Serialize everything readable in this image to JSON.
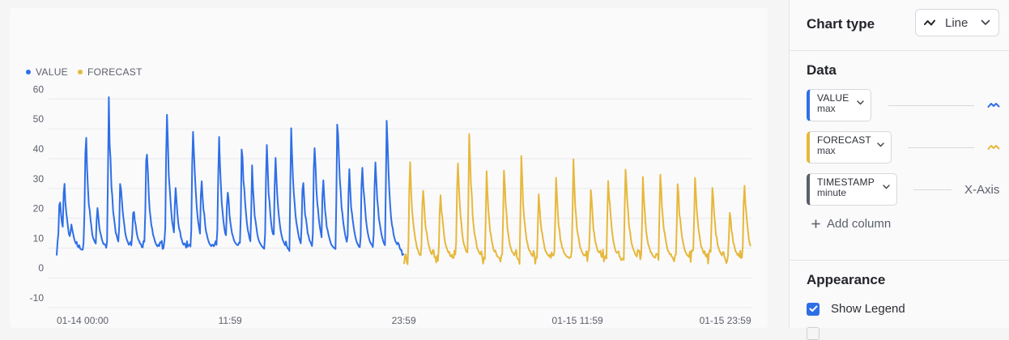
{
  "legend": [
    {
      "label": "VALUE",
      "color": "#2f6fe6"
    },
    {
      "label": "FORECAST",
      "color": "#e6b83c"
    }
  ],
  "chart_data": {
    "type": "line",
    "xlabel": "",
    "ylabel": "",
    "ylim": [
      -10,
      65
    ],
    "yticks": [
      "60",
      "50",
      "40",
      "30",
      "20",
      "10",
      "0",
      "-10"
    ],
    "xticks": [
      "01-14 00:00",
      "11:59",
      "23:59",
      "01-15 11:59",
      "01-15 23:59"
    ],
    "grid": true,
    "legend_position": "top-left",
    "x_range_hours": [
      0,
      48
    ],
    "series": [
      {
        "name": "VALUE",
        "color": "#2f6fe6",
        "peaks": [
          {
            "t": 0.2,
            "v": 29
          },
          {
            "t": 0.5,
            "v": 36
          },
          {
            "t": 1.0,
            "v": 20
          },
          {
            "t": 2.0,
            "v": 54
          },
          {
            "t": 2.8,
            "v": 26
          },
          {
            "t": 3.6,
            "v": 61
          },
          {
            "t": 4.4,
            "v": 37
          },
          {
            "t": 5.3,
            "v": 27
          },
          {
            "t": 6.2,
            "v": 50
          },
          {
            "t": 7.6,
            "v": 61
          },
          {
            "t": 8.2,
            "v": 35
          },
          {
            "t": 9.4,
            "v": 58
          },
          {
            "t": 10.0,
            "v": 38
          },
          {
            "t": 11.2,
            "v": 53
          },
          {
            "t": 11.8,
            "v": 34
          },
          {
            "t": 12.8,
            "v": 51
          },
          {
            "t": 13.5,
            "v": 38
          },
          {
            "t": 14.5,
            "v": 49
          },
          {
            "t": 15.1,
            "v": 44
          },
          {
            "t": 16.2,
            "v": 55
          },
          {
            "t": 17.0,
            "v": 37
          },
          {
            "t": 17.8,
            "v": 52
          },
          {
            "t": 18.4,
            "v": 37
          },
          {
            "t": 19.4,
            "v": 61
          },
          {
            "t": 20.2,
            "v": 40
          },
          {
            "t": 21.1,
            "v": 44
          },
          {
            "t": 22.0,
            "v": 46
          },
          {
            "t": 22.8,
            "v": 56
          }
        ],
        "x_end_hours": 24.0,
        "baseline": 9
      },
      {
        "name": "FORECAST",
        "color": "#e6b83c",
        "peaks": [
          {
            "t": 24.4,
            "v": 42
          },
          {
            "t": 25.3,
            "v": 34
          },
          {
            "t": 26.5,
            "v": 33
          },
          {
            "t": 27.7,
            "v": 43
          },
          {
            "t": 28.5,
            "v": 52
          },
          {
            "t": 29.7,
            "v": 36
          },
          {
            "t": 30.9,
            "v": 39
          },
          {
            "t": 32.1,
            "v": 42
          },
          {
            "t": 33.3,
            "v": 31
          },
          {
            "t": 34.5,
            "v": 34
          },
          {
            "t": 35.7,
            "v": 40
          },
          {
            "t": 36.9,
            "v": 32
          },
          {
            "t": 38.1,
            "v": 37
          },
          {
            "t": 39.3,
            "v": 41
          },
          {
            "t": 40.5,
            "v": 34
          },
          {
            "t": 41.7,
            "v": 39
          },
          {
            "t": 42.9,
            "v": 35
          },
          {
            "t": 44.1,
            "v": 37
          },
          {
            "t": 45.3,
            "v": 33
          },
          {
            "t": 46.5,
            "v": 24
          },
          {
            "t": 47.5,
            "v": 36
          }
        ],
        "x_end_hours": 48.0,
        "baseline": 6
      }
    ]
  },
  "sidebar": {
    "chart_type_label": "Chart type",
    "chart_type_value": "Line",
    "data_title": "Data",
    "columns": [
      {
        "name": "VALUE",
        "agg": "max",
        "color": "#2f6fe6",
        "icon": "line-series-icon"
      },
      {
        "name": "FORECAST",
        "agg": "max",
        "color": "#e6b83c",
        "icon": "line-series-icon"
      },
      {
        "name": "TIMESTAMP",
        "agg": "minute",
        "color": "#5b5f69",
        "role": "X-Axis"
      }
    ],
    "add_column_label": "Add column",
    "appearance_title": "Appearance",
    "show_legend_label": "Show Legend",
    "show_legend_checked": true
  }
}
